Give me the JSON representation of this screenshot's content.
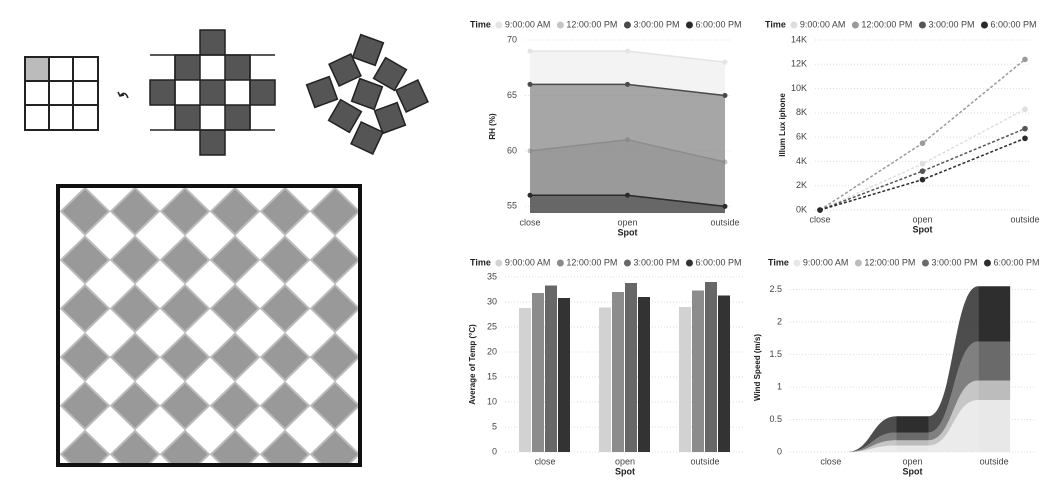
{
  "chart_data": [
    {
      "type": "area",
      "legend_title": "Time",
      "x_label": "Spot",
      "y_label": "RH (%)",
      "categories": [
        "close",
        "open",
        "outside"
      ],
      "series": [
        {
          "name": "9:00:00 AM",
          "color": "#e4e4e4",
          "values": [
            69,
            69,
            68
          ]
        },
        {
          "name": "12:00:00 PM",
          "color": "#c4c4c4",
          "values": [
            60,
            61,
            59
          ]
        },
        {
          "name": "3:00:00 PM",
          "color": "#4a4a4a",
          "values": [
            66,
            66,
            65
          ]
        },
        {
          "name": "6:00:00 PM",
          "color": "#2a2a2a",
          "values": [
            56,
            56,
            55
          ]
        }
      ],
      "ylim": [
        54.4,
        70
      ],
      "yticks": [
        55,
        60,
        65,
        70
      ]
    },
    {
      "type": "line",
      "legend_title": "Time",
      "x_label": "Spot",
      "y_label": "Illum Lux iphone",
      "categories": [
        "close",
        "open",
        "outside"
      ],
      "series": [
        {
          "name": "9:00:00 AM",
          "color": "#dedede",
          "values": [
            0,
            3800,
            8300
          ]
        },
        {
          "name": "12:00:00 PM",
          "color": "#9a9a9a",
          "values": [
            0,
            5500,
            12400
          ]
        },
        {
          "name": "3:00:00 PM",
          "color": "#555555",
          "values": [
            0,
            3200,
            6700
          ]
        },
        {
          "name": "6:00:00 PM",
          "color": "#2a2a2a",
          "values": [
            0,
            2500,
            5900
          ]
        }
      ],
      "ylim": [
        0,
        14000
      ],
      "yticks": [
        {
          "value": 0,
          "label": "0K"
        },
        {
          "value": 2000,
          "label": "2K"
        },
        {
          "value": 4000,
          "label": "4K"
        },
        {
          "value": 6000,
          "label": "6K"
        },
        {
          "value": 8000,
          "label": "8K"
        },
        {
          "value": 10000,
          "label": "10K"
        },
        {
          "value": 12000,
          "label": "12K"
        },
        {
          "value": 14000,
          "label": "14K"
        }
      ]
    },
    {
      "type": "bar",
      "legend_title": "Time",
      "x_label": "Spot",
      "y_label": "Average of Temp (°C)",
      "categories": [
        "close",
        "open",
        "outside"
      ],
      "series": [
        {
          "name": "9:00:00 AM",
          "color": "#d2d2d2",
          "values": [
            28.8,
            28.9,
            29
          ]
        },
        {
          "name": "12:00:00 PM",
          "color": "#8c8c8c",
          "values": [
            31.8,
            32,
            32.3
          ]
        },
        {
          "name": "3:00:00 PM",
          "color": "#676767",
          "values": [
            33.3,
            33.8,
            34
          ]
        },
        {
          "name": "6:00:00 PM",
          "color": "#333333",
          "values": [
            30.8,
            31,
            31.3
          ]
        }
      ],
      "ylim": [
        0,
        35
      ],
      "yticks": [
        0,
        5,
        10,
        15,
        20,
        25,
        30,
        35
      ]
    },
    {
      "type": "ribbon",
      "legend_title": "Time",
      "x_label": "Spot",
      "y_label": "Wind Speed (m/s)",
      "categories": [
        "close",
        "open",
        "outside"
      ],
      "series": [
        {
          "name": "9:00:00 AM",
          "color": "#e8e8e8",
          "values": [
            0,
            0.1,
            0.8
          ]
        },
        {
          "name": "12:00:00 PM",
          "color": "#bcbcbc",
          "values": [
            0,
            0.08,
            0.3
          ]
        },
        {
          "name": "3:00:00 PM",
          "color": "#6a6a6a",
          "values": [
            0,
            0.12,
            0.6
          ]
        },
        {
          "name": "6:00:00 PM",
          "color": "#2e2e2e",
          "values": [
            0,
            0.25,
            0.85
          ]
        }
      ],
      "ylim": [
        0,
        2.6
      ],
      "yticks": [
        0,
        0.5,
        1,
        1.5,
        2,
        2.5
      ]
    }
  ]
}
